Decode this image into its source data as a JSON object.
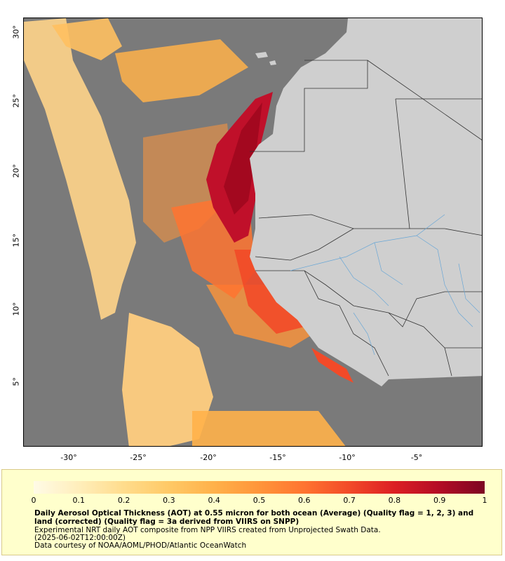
{
  "map": {
    "lat_labels": [
      "30°",
      "25°",
      "20°",
      "15°",
      "10°",
      "5°"
    ],
    "lon_labels": [
      "-30°",
      "-25°",
      "-20°",
      "-15°",
      "-10°",
      "-5°"
    ],
    "colors": {
      "ocean_no_data": "#7a7a7a",
      "land": "#cfcfcf",
      "rivers": "#6aa7d6",
      "borders": "#333333"
    }
  },
  "legend": {
    "ticks": [
      "0",
      "0.1",
      "0.2",
      "0.3",
      "0.4",
      "0.5",
      "0.6",
      "0.7",
      "0.8",
      "0.9",
      "1"
    ],
    "colors": [
      "#fffbe6",
      "#ffeebb",
      "#ffdc8c",
      "#ffc966",
      "#ffb14a",
      "#ff953a",
      "#ff7430",
      "#f24a28",
      "#dc1f23",
      "#b30c25",
      "#7d0522"
    ],
    "title": "Daily Aerosol Optical Thickness (AOT) at 0.55 micron for both ocean (Average) (Quality flag = 1, 2, 3) and land (corrected) (Quality flag = 3a derived from VIIRS on SNPP)",
    "line1": "Experimental NRT daily AOT composite from NPP VIIRS created from Unprojected Swath Data.",
    "line2": "(2025-06-02T12:00:00Z)",
    "line3": "Data courtesy of NOAA/AOML/PHOD/Atlantic OceanWatch"
  }
}
